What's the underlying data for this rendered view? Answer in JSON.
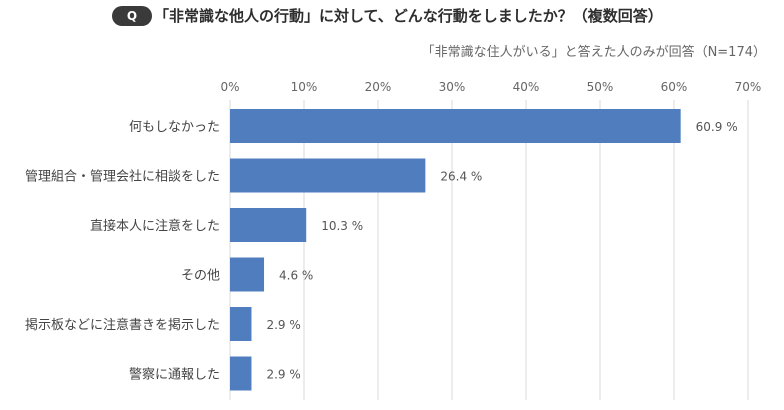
{
  "header": {
    "q_label": "Q",
    "question": "「非常識な他人の行動」に対して、どんな行動をしましたか？（複数回答）",
    "note": "「非常識な住人がいる」と答えた人のみが回答（N=174）"
  },
  "chart_data": {
    "type": "bar",
    "orientation": "horizontal",
    "categories": [
      "何もしなかった",
      "管理組合・管理会社に相談をした",
      "直接本人に注意をした",
      "その他",
      "掲示板などに注意書きを掲示した",
      "警察に通報した"
    ],
    "values": [
      60.9,
      26.4,
      10.3,
      4.6,
      2.9,
      2.9
    ],
    "value_labels": [
      "60.9 %",
      "26.4 %",
      "10.3 %",
      "4.6 %",
      "2.9 %",
      "2.9 %"
    ],
    "xticks": [
      "0%",
      "10%",
      "20%",
      "30%",
      "40%",
      "50%",
      "60%",
      "70%"
    ],
    "xlim": [
      0,
      70
    ],
    "grid": true,
    "bar_color": "#4f7dbd",
    "grid_color": "#d9d9d9"
  }
}
